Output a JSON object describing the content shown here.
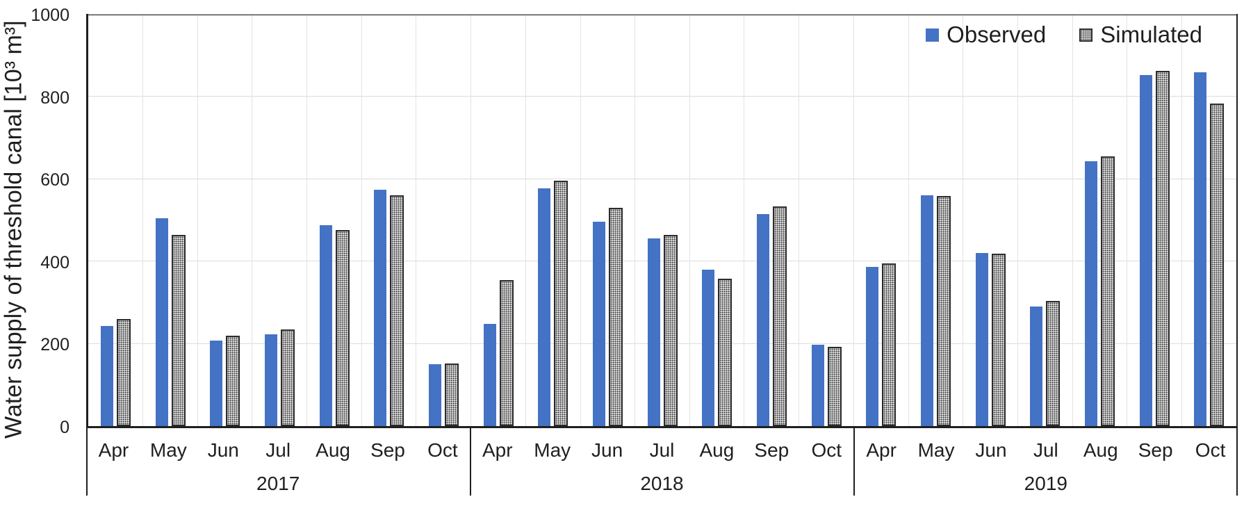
{
  "chart_data": {
    "type": "bar",
    "title": "",
    "ylabel": "Water supply of threshold canal [10³ m³]",
    "ylim": [
      0,
      1000
    ],
    "yticks": [
      "0",
      "200",
      "400",
      "600",
      "800",
      "1000"
    ],
    "grid": true,
    "legend_position": "top-right-inside",
    "months": [
      "Apr",
      "May",
      "Jun",
      "Jul",
      "Aug",
      "Sep",
      "Oct"
    ],
    "series": [
      {
        "name": "Observed",
        "color": "#4472C4",
        "style": "solid"
      },
      {
        "name": "Simulated",
        "color": "#808080",
        "style": "dot-pattern"
      }
    ],
    "years": [
      {
        "label": "2017",
        "observed": [
          243,
          505,
          207,
          223,
          488,
          574,
          150
        ],
        "simulated": [
          260,
          464,
          220,
          235,
          475,
          560,
          152
        ]
      },
      {
        "label": "2018",
        "observed": [
          248,
          577,
          496,
          455,
          380,
          514,
          197
        ],
        "simulated": [
          354,
          595,
          530,
          463,
          358,
          533,
          193
        ]
      },
      {
        "label": "2019",
        "observed": [
          387,
          560,
          420,
          290,
          642,
          852,
          858
        ],
        "simulated": [
          394,
          558,
          418,
          304,
          654,
          862,
          782
        ]
      }
    ]
  },
  "colors": {
    "observed_blue": "#4472C4",
    "axis_black": "#1f1f1f",
    "gridline_gray": "#dcdcdc"
  }
}
